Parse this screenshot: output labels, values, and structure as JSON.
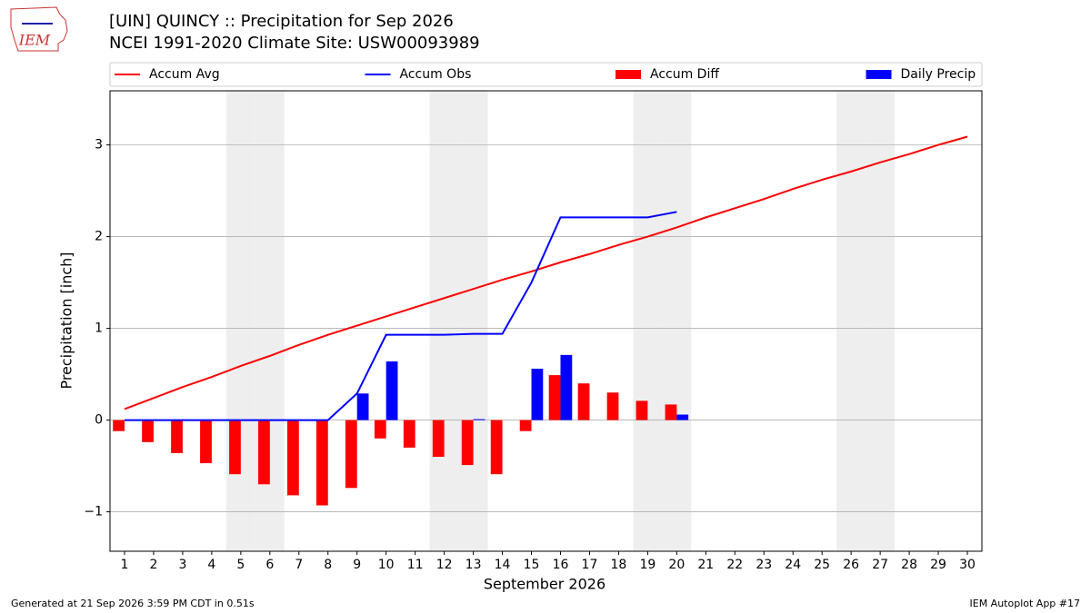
{
  "chart_data": {
    "type": "combo",
    "title": "[UIN] QUINCY :: Precipitation for Sep 2026",
    "subtitle": "NCEI 1991-2020 Climate Site: USW00093989",
    "logo_text": "IEM",
    "xlabel": "September 2026",
    "ylabel": "Precipitation [inch]",
    "footer_left": "Generated at 21 Sep 2026 3:59 PM CDT in 0.51s",
    "footer_right": "IEM Autoplot App #17",
    "x": [
      1,
      2,
      3,
      4,
      5,
      6,
      7,
      8,
      9,
      10,
      11,
      12,
      13,
      14,
      15,
      16,
      17,
      18,
      19,
      20,
      21,
      22,
      23,
      24,
      25,
      26,
      27,
      28,
      29,
      30
    ],
    "xlim": [
      0.5,
      30.5
    ],
    "xticks": [
      1,
      2,
      3,
      4,
      5,
      6,
      7,
      8,
      9,
      10,
      11,
      12,
      13,
      14,
      15,
      16,
      17,
      18,
      19,
      20,
      21,
      22,
      23,
      24,
      25,
      26,
      27,
      28,
      29,
      30
    ],
    "ylim": [
      -1.43,
      3.59
    ],
    "yticks": [
      {
        "value": -1,
        "label": "−1"
      },
      0,
      1,
      2,
      3
    ],
    "grid": true,
    "weekends": [
      5,
      6,
      12,
      13,
      19,
      20,
      26,
      27
    ],
    "series": [
      {
        "name": "Accum Avg",
        "kind": "line",
        "color": "#ff0000",
        "values": [
          0.12,
          0.24,
          0.36,
          0.47,
          0.59,
          0.7,
          0.82,
          0.93,
          1.03,
          1.13,
          1.23,
          1.33,
          1.43,
          1.53,
          1.62,
          1.72,
          1.81,
          1.91,
          2.0,
          2.1,
          2.21,
          2.31,
          2.41,
          2.52,
          2.62,
          2.71,
          2.81,
          2.9,
          3.0,
          3.09
        ]
      },
      {
        "name": "Accum Obs",
        "kind": "line",
        "color": "#0000ff",
        "values": [
          0,
          0,
          0,
          0,
          0,
          0,
          0,
          0,
          0.29,
          0.93,
          0.93,
          0.93,
          0.94,
          0.94,
          1.5,
          2.21,
          2.21,
          2.21,
          2.21,
          2.27,
          null,
          null,
          null,
          null,
          null,
          null,
          null,
          null,
          null,
          null
        ]
      },
      {
        "name": "Accum Diff",
        "kind": "bar",
        "color": "#ff0000",
        "values": [
          -0.12,
          -0.24,
          -0.36,
          -0.47,
          -0.59,
          -0.7,
          -0.82,
          -0.93,
          -0.74,
          -0.2,
          -0.3,
          -0.4,
          -0.49,
          -0.59,
          -0.12,
          0.49,
          0.4,
          0.3,
          0.21,
          0.17,
          null,
          null,
          null,
          null,
          null,
          null,
          null,
          null,
          null,
          null
        ]
      },
      {
        "name": "Daily Precip",
        "kind": "bar",
        "color": "#0000ff",
        "values": [
          0,
          0,
          0,
          0,
          0,
          0,
          0,
          0,
          0.29,
          0.64,
          0,
          0,
          0.01,
          0,
          0.56,
          0.71,
          0,
          0,
          0,
          0.06,
          null,
          null,
          null,
          null,
          null,
          null,
          null,
          null,
          null,
          null
        ]
      }
    ]
  }
}
